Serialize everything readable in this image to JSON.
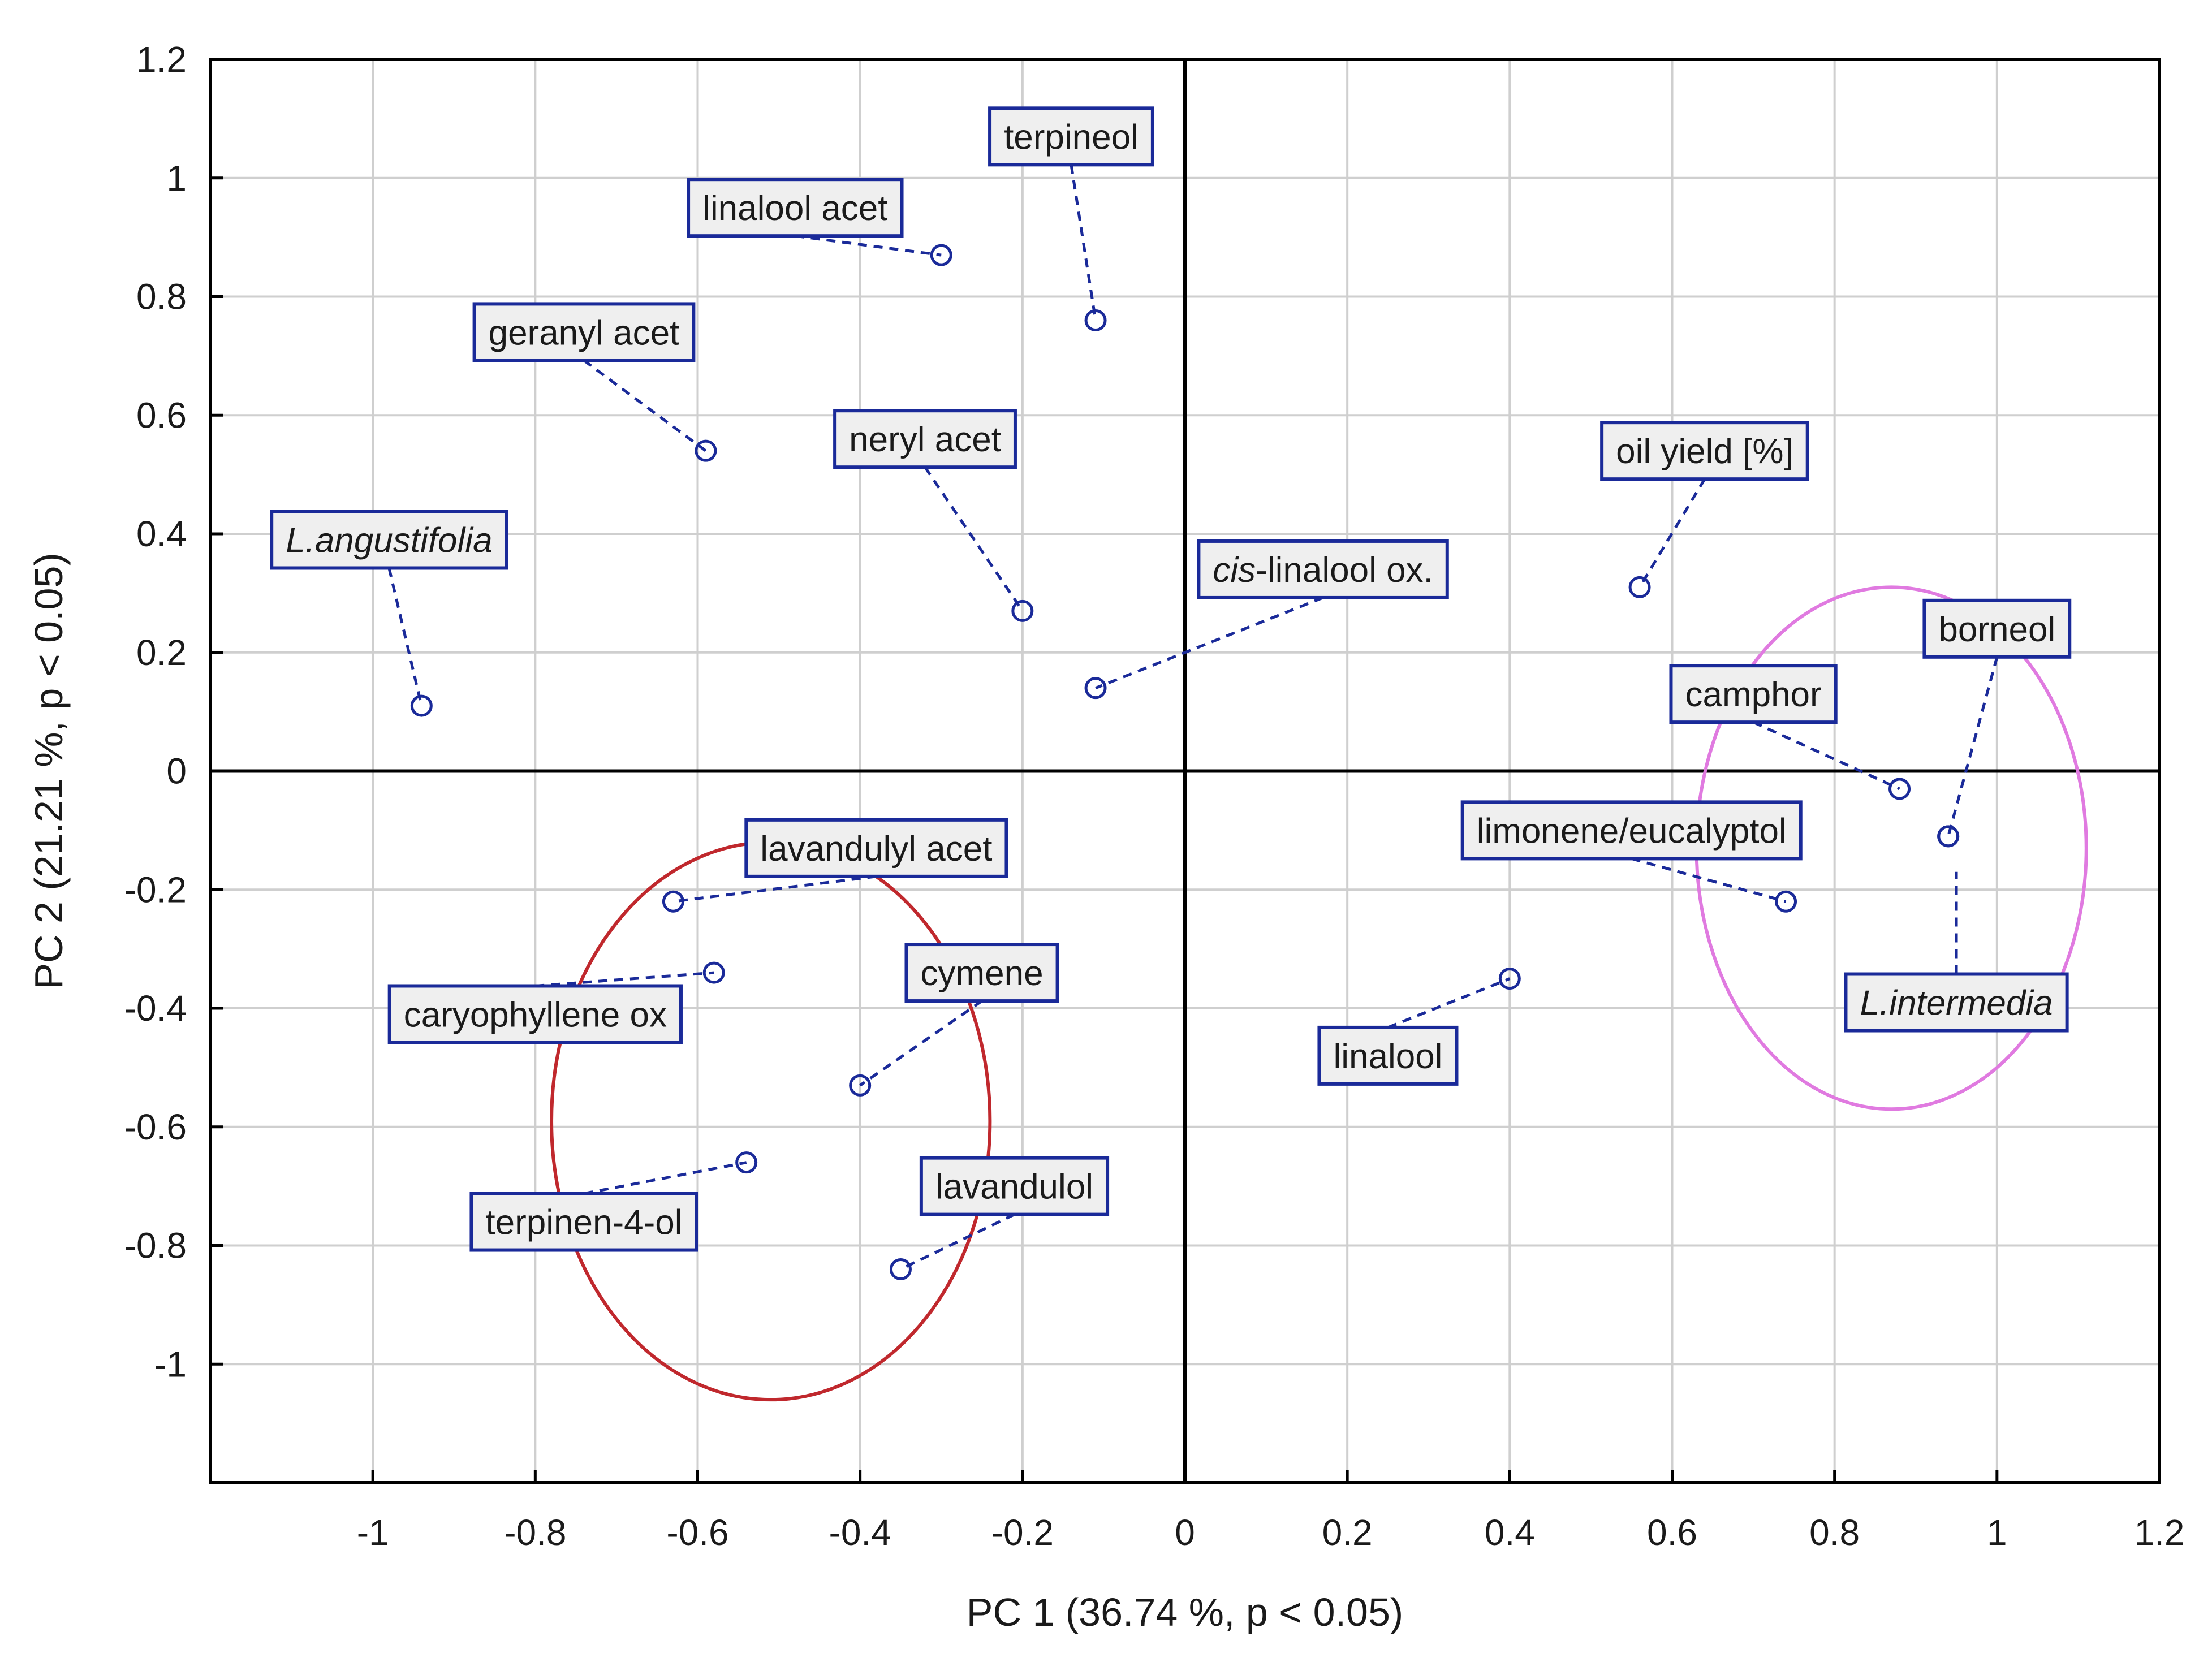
{
  "chart_data": {
    "type": "scatter",
    "xlabel": "PC 1 (36.74 %,  p < 0.05)",
    "ylabel": "PC 2 (21.21 %,  p < 0.05)",
    "xlim": [
      -1.2,
      1.2
    ],
    "ylim": [
      -1.2,
      1.2
    ],
    "xticks": [
      "-1",
      "-0.8",
      "-0.6",
      "-0.4",
      "-0.2",
      "0",
      "0.2",
      "0.4",
      "0.6",
      "0.8",
      "1",
      "1.2"
    ],
    "yticks": [
      "1.2",
      "1",
      "0.8",
      "0.6",
      "0.4",
      "0.2",
      "0",
      "-0.2",
      "-0.4",
      "-0.6",
      "-0.8",
      "-1"
    ],
    "grid": true,
    "colors": {
      "markers": "#1a2a99",
      "ellipse_angustifolia_group": "#c0282d",
      "ellipse_intermedia_group": "#e07ae0",
      "label_box": "#efefef"
    },
    "points": [
      {
        "label": "terpineol",
        "x": -0.11,
        "y": 0.76,
        "italic": false,
        "label_x": -0.14,
        "label_y": 1.07
      },
      {
        "label": "linalool acet",
        "x": -0.3,
        "y": 0.87,
        "italic": false,
        "label_x": -0.48,
        "label_y": 0.95
      },
      {
        "label": "geranyl acet",
        "x": -0.59,
        "y": 0.54,
        "italic": false,
        "label_x": -0.74,
        "label_y": 0.74
      },
      {
        "label": "neryl acet",
        "x": -0.2,
        "y": 0.27,
        "italic": false,
        "label_x": -0.32,
        "label_y": 0.56
      },
      {
        "label": "L.angustifolia",
        "x": -0.94,
        "y": 0.11,
        "italic": true,
        "label_x": -0.98,
        "label_y": 0.39
      },
      {
        "label": "cis-linalool ox.",
        "x": -0.11,
        "y": 0.14,
        "italic": false,
        "prefix_italic": "cis",
        "label_x": 0.17,
        "label_y": 0.34
      },
      {
        "label": "oil yield [%]",
        "x": 0.56,
        "y": 0.31,
        "italic": false,
        "label_x": 0.64,
        "label_y": 0.54
      },
      {
        "label": "borneol",
        "x": 0.94,
        "y": -0.11,
        "italic": false,
        "label_x": 1.0,
        "label_y": 0.24
      },
      {
        "label": "camphor",
        "x": 0.88,
        "y": -0.03,
        "italic": false,
        "label_x": 0.7,
        "label_y": 0.13
      },
      {
        "label": "limonene/eucalyptol",
        "x": 0.74,
        "y": -0.22,
        "italic": false,
        "label_x": 0.55,
        "label_y": -0.1
      },
      {
        "label": "L.intermedia",
        "x": 0.94,
        "y": -0.11,
        "italic": true,
        "anchor_x": 0.95,
        "anchor_y": -0.17,
        "label_x": 0.95,
        "label_y": -0.39
      },
      {
        "label": "linalool",
        "x": 0.4,
        "y": -0.35,
        "italic": false,
        "label_x": 0.25,
        "label_y": -0.48
      },
      {
        "label": "lavandulyl acet",
        "x": -0.63,
        "y": -0.22,
        "italic": false,
        "label_x": -0.38,
        "label_y": -0.13
      },
      {
        "label": "caryophyllene ox",
        "x": -0.58,
        "y": -0.34,
        "italic": false,
        "label_x": -0.8,
        "label_y": -0.41
      },
      {
        "label": "cymene",
        "x": -0.4,
        "y": -0.53,
        "italic": false,
        "label_x": -0.25,
        "label_y": -0.34
      },
      {
        "label": "terpinen-4-ol",
        "x": -0.54,
        "y": -0.66,
        "italic": false,
        "label_x": -0.74,
        "label_y": -0.76
      },
      {
        "label": "lavandulol",
        "x": -0.35,
        "y": -0.84,
        "italic": false,
        "label_x": -0.21,
        "label_y": -0.7
      }
    ],
    "ellipses": [
      {
        "group": "angustifolia_group",
        "cx": -0.51,
        "cy": -0.59,
        "rx": 0.27,
        "ry": 0.47,
        "color": "#c0282d"
      },
      {
        "group": "intermedia_group",
        "cx": 0.87,
        "cy": -0.13,
        "rx": 0.24,
        "ry": 0.44,
        "color": "#e07ae0"
      }
    ]
  }
}
